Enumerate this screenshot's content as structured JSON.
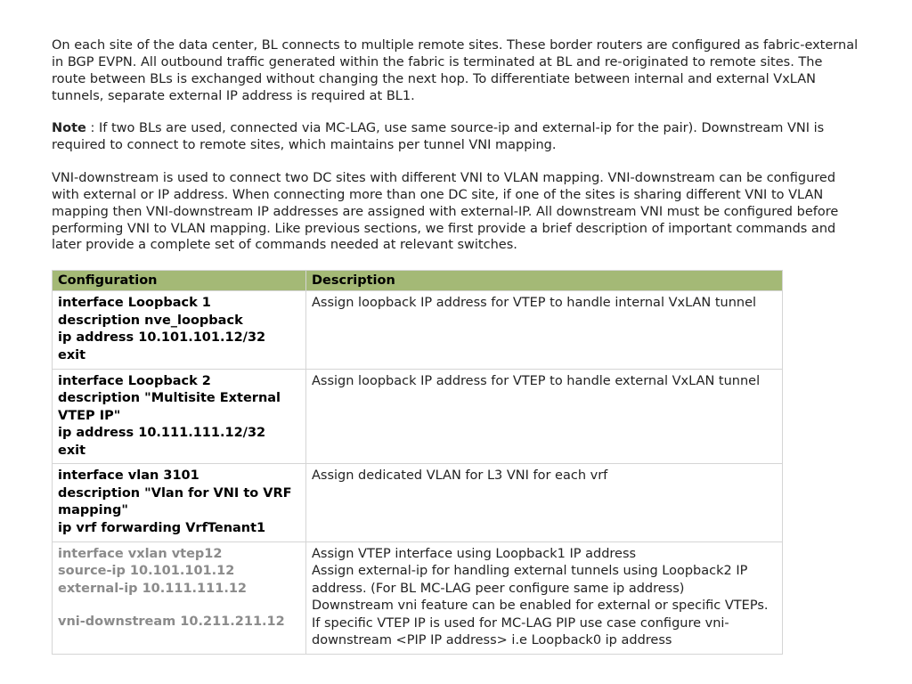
{
  "paragraphs": {
    "p1": "On each site of the data center, BL connects to multiple remote sites. These border routers are configured as fabric-external in BGP EVPN. All outbound traffic generated within the fabric is terminated at BL and re-originated to remote sites. The route between BLs is exchanged without changing the next hop. To differentiate between internal and external VxLAN tunnels, separate external IP address is required at BL1.",
    "note_label": "Note",
    "note_body": " : If two BLs are used, connected via MC-LAG, use same source-ip and external-ip for the pair). Downstream VNI is required to connect to remote sites, which maintains per tunnel VNI mapping.",
    "p3": "VNI-downstream is used to connect two DC sites with different VNI to VLAN mapping. VNI-downstream can be configured with external or IP address. When connecting more than one DC site, if one of the sites is sharing different VNI to VLAN mapping then VNI-downstream IP addresses are assigned with external-IP. All downstream VNI must be configured before performing VNI to VLAN mapping. Like previous sections, we first provide a brief description of important commands and later provide a complete set of commands needed at relevant switches."
  },
  "table": {
    "headers": {
      "col1": "Configuration",
      "col2": "Description"
    },
    "rows": [
      {
        "cfg": [
          "interface Loopback 1",
          "description nve_loopback",
          "ip address 10.101.101.12/32",
          "exit"
        ],
        "cfg_style": "bold",
        "desc": "Assign loopback IP address for VTEP to handle internal VxLAN tunnel"
      },
      {
        "cfg": [
          "interface Loopback 2",
          "description \"Multisite External VTEP IP\"",
          "ip address 10.111.111.12/32",
          "exit"
        ],
        "cfg_style": "bold",
        "desc": "Assign loopback IP address for VTEP to handle external VxLAN tunnel"
      },
      {
        "cfg": [
          "interface vlan 3101",
          "description \"Vlan for VNI to VRF mapping\"",
          "ip vrf forwarding VrfTenant1"
        ],
        "cfg_style": "bold",
        "desc": "Assign dedicated VLAN for L3 VNI for each vrf"
      },
      {
        "cfg_blocks": [
          {
            "style": "grey",
            "lines": [
              "interface vxlan vtep12",
              "source-ip 10.101.101.12",
              "external-ip 10.111.111.12"
            ]
          },
          {
            "style": "grey",
            "spacer": true
          },
          {
            "style": "grey",
            "lines": [
              "vni-downstream 10.211.211.12"
            ]
          }
        ],
        "desc": "Assign VTEP interface using Loopback1 IP address\nAssign external-ip for handling external tunnels using Loopback2 IP address. (For BL MC-LAG peer configure same ip address)\nDownstream vni feature can be enabled for external or specific VTEPs. If specific VTEP IP is used for MC-LAG PIP use case configure vni-downstream <PIP IP address> i.e Loopback0 ip address"
      }
    ]
  }
}
